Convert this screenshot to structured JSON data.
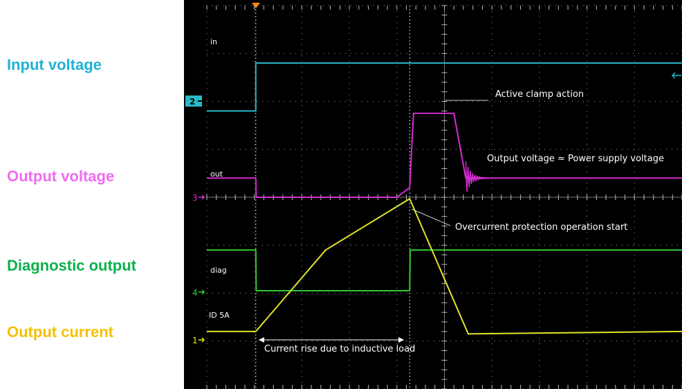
{
  "legend": {
    "input_voltage": "Input voltage",
    "output_voltage": "Output voltage",
    "diagnostic_output": "Diagnostic output",
    "output_current": "Output current"
  },
  "colors": {
    "background": "#000000",
    "grid": "#bfbfbf",
    "input_voltage": "#1fb3d6",
    "output_voltage": "#f06cf0",
    "diagnostic_output": "#0cb04b",
    "output_current": "#f5c000",
    "scope_input": "#29b8c8",
    "scope_output": "#d52fd2",
    "scope_diag": "#33cc33",
    "scope_current": "#e5e52a",
    "annotation": "#ffffff",
    "trigger": "#ff8c1a"
  },
  "scope": {
    "trace_labels": {
      "in": "in",
      "out": "out",
      "diag": "diag",
      "current": "ID 5A"
    },
    "channel_markers": [
      "2",
      "3",
      "4",
      "1"
    ],
    "annotations": {
      "active_clamp": "Active clamp action",
      "power_supply": "Output voltage ≈ Power supply voltage",
      "overcurrent": "Overcurrent protection operation start",
      "current_rise": "Current rise due to inductive load"
    }
  },
  "chart_data": {
    "type": "line",
    "xlabel": "",
    "ylabel": "",
    "xlim": [
      0,
      10
    ],
    "ylim": [
      0,
      8
    ],
    "grid": true,
    "x_divisions": 10,
    "y_divisions": 8,
    "markers": [
      1.03,
      4.27
    ],
    "series": [
      {
        "name": "Input voltage",
        "x": [
          0,
          1.03,
          1.03,
          10
        ],
        "y": [
          5.8,
          5.8,
          6.8,
          6.8
        ]
      },
      {
        "name": "Output voltage",
        "x": [
          0,
          1.03,
          1.04,
          4.0,
          4.27,
          4.35,
          5.2,
          5.45,
          5.65,
          10
        ],
        "y": [
          4.4,
          4.4,
          4.0,
          4.0,
          4.2,
          5.75,
          5.75,
          4.4,
          4.4,
          4.4
        ]
      },
      {
        "name": "Diagnostic output",
        "x": [
          0,
          1.03,
          1.04,
          4.27,
          4.28,
          10
        ],
        "y": [
          2.9,
          2.9,
          2.05,
          2.05,
          2.9,
          2.9
        ]
      },
      {
        "name": "Output current",
        "x": [
          0,
          1.03,
          2.5,
          4.27,
          5.5,
          10
        ],
        "y": [
          1.2,
          1.2,
          2.9,
          3.97,
          1.15,
          1.2
        ]
      }
    ]
  }
}
